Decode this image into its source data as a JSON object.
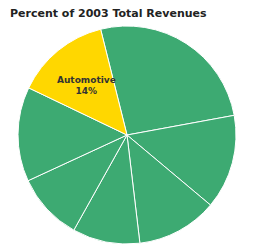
{
  "chart_data": {
    "type": "pie",
    "title": "Percent of 2003 Total Revenues",
    "categories": [
      null,
      null,
      null,
      null,
      null,
      null,
      "Automotive"
    ],
    "values": [
      26,
      14,
      12,
      10,
      10,
      14,
      14
    ],
    "value_labels": [
      null,
      null,
      null,
      null,
      null,
      null,
      "14%"
    ],
    "colors": [
      "#3DAA72",
      "#3DAA72",
      "#3DAA72",
      "#3DAA72",
      "#3DAA72",
      "#3DAA72",
      "#FFD700"
    ]
  }
}
